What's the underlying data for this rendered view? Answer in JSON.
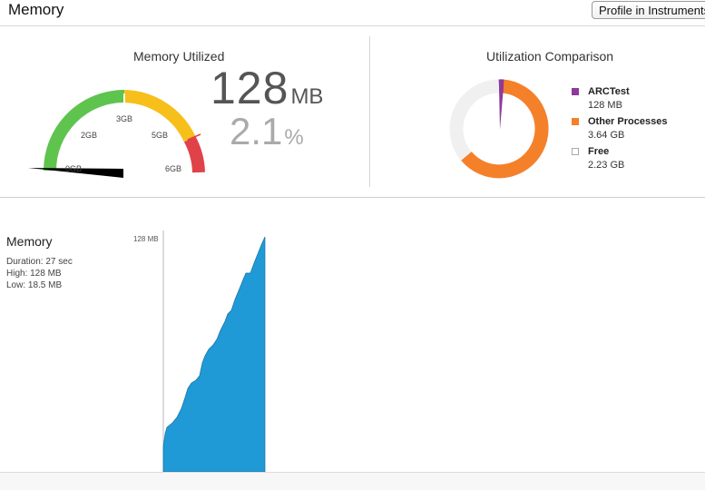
{
  "header": {
    "title": "Memory",
    "profile_button": "Profile in Instruments"
  },
  "gauge": {
    "title": "Memory Utilized",
    "value": "128",
    "unit": "MB",
    "percent": "2.1",
    "percent_unit": "%",
    "labels": [
      "0GB",
      "2GB",
      "3GB",
      "5GB",
      "6GB"
    ],
    "colors": {
      "green": "#5ec44e",
      "yellow": "#f6bf1a",
      "red": "#e0424a"
    }
  },
  "comparison": {
    "title": "Utilization Comparison",
    "items": [
      {
        "name": "ARCTest",
        "value": "128 MB",
        "color": "#8e3a9b"
      },
      {
        "name": "Other Processes",
        "value": "3.64 GB",
        "color": "#f5802a"
      },
      {
        "name": "Free",
        "value": "2.23 GB",
        "color": "#f0f0f0"
      }
    ]
  },
  "memory_graph": {
    "title": "Memory",
    "duration": "Duration: 27 sec",
    "high": "High: 128 MB",
    "low": "Low: 18.5 MB",
    "axis_max_label": "128 MB",
    "color": "#1f9ad6"
  }
}
